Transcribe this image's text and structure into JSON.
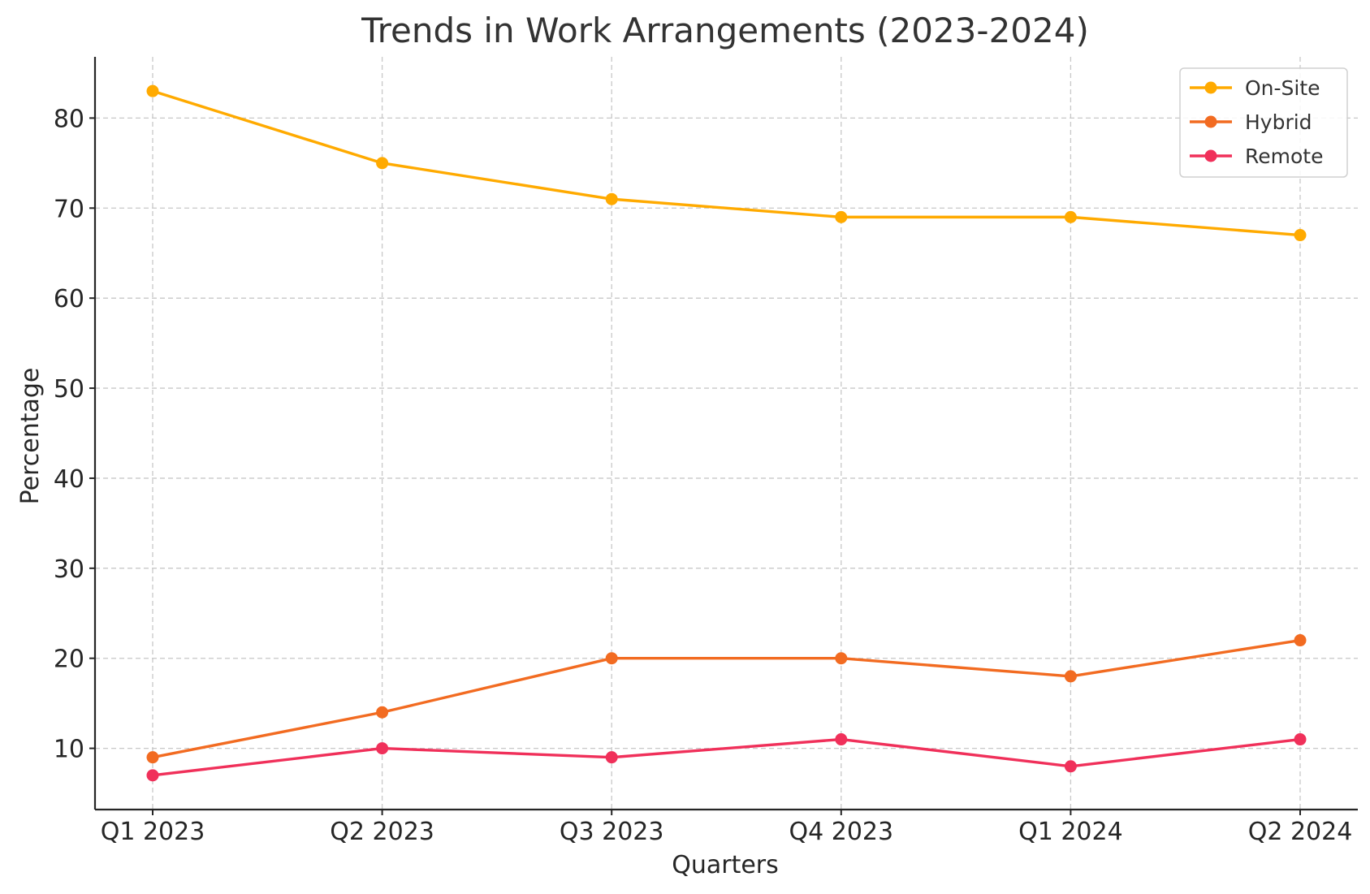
{
  "chart_data": {
    "type": "line",
    "title": "Trends in Work Arrangements (2023-2024)",
    "xlabel": "Quarters",
    "ylabel": "Percentage",
    "categories": [
      "Q1 2023",
      "Q2 2023",
      "Q3 2023",
      "Q4 2023",
      "Q1 2024",
      "Q2 2024"
    ],
    "y_ticks": [
      10,
      20,
      30,
      40,
      50,
      60,
      70,
      80
    ],
    "ylim": [
      3.2,
      86.8
    ],
    "grid": true,
    "legend_position": "top-right",
    "series": [
      {
        "name": "On-Site",
        "color": "#FFAA00",
        "values": [
          83,
          75,
          71,
          69,
          69,
          67
        ]
      },
      {
        "name": "Hybrid",
        "color": "#F26B21",
        "values": [
          9,
          14,
          20,
          20,
          18,
          22
        ]
      },
      {
        "name": "Remote",
        "color": "#F0305A",
        "values": [
          7,
          10,
          9,
          11,
          8,
          11
        ]
      }
    ]
  }
}
